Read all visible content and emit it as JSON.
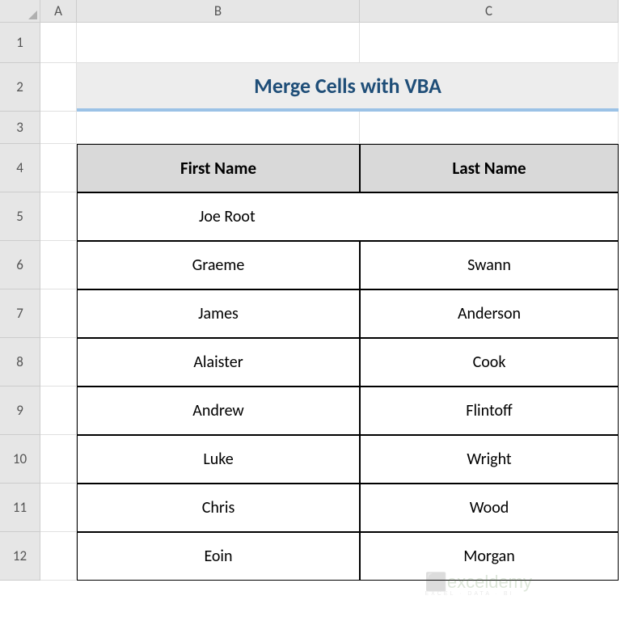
{
  "columns": {
    "A": "A",
    "B": "B",
    "C": "C"
  },
  "rows": {
    "r1": "1",
    "r2": "2",
    "r3": "3",
    "r4": "4",
    "r5": "5",
    "r6": "6",
    "r7": "7",
    "r8": "8",
    "r9": "9",
    "r10": "10",
    "r11": "11",
    "r12": "12"
  },
  "title": "Merge Cells with VBA",
  "table": {
    "headers": {
      "first_name": "First Name",
      "last_name": "Last Name"
    },
    "merged_row": "Joe Root",
    "data": [
      {
        "first": "Graeme",
        "last": "Swann"
      },
      {
        "first": "James",
        "last": "Anderson"
      },
      {
        "first": "Alaister",
        "last": "Cook"
      },
      {
        "first": "Andrew",
        "last": "Flintoff"
      },
      {
        "first": "Luke",
        "last": "Wright"
      },
      {
        "first": "Chris",
        "last": "Wood"
      },
      {
        "first": "Eoin",
        "last": "Morgan"
      }
    ]
  },
  "styling": {
    "title_bg": "#ededed",
    "title_color": "#1f4e78",
    "title_border": "#9bc2e6",
    "header_bg": "#d9d9d9",
    "cell_border": "#000000",
    "grid_header_bg": "#e6e6e6",
    "font_family": "Calibri",
    "title_fontsize": 26,
    "header_fontsize": 21,
    "data_fontsize": 20
  },
  "watermark": {
    "main": "exceldemy",
    "sub": "EXCEL · DATA · BI"
  }
}
